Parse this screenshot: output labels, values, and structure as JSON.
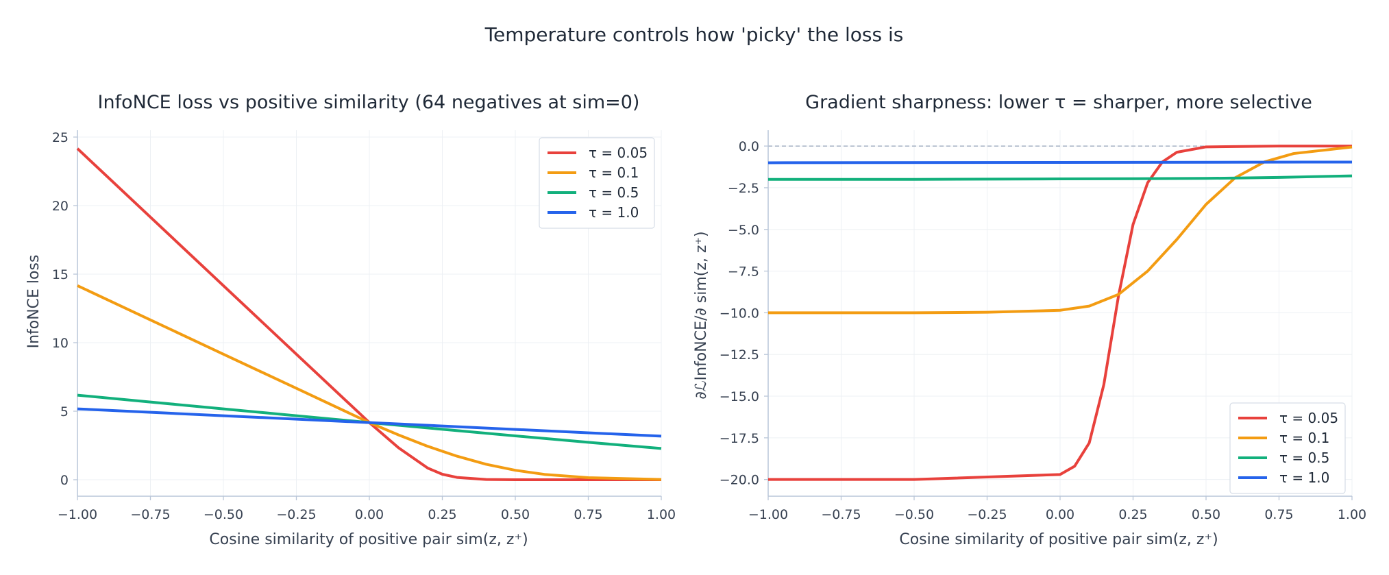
{
  "figure": {
    "suptitle": "Temperature controls how 'picky' the loss is"
  },
  "chart_data": [
    {
      "type": "line",
      "title": "InfoNCE loss vs positive similarity (64 negatives at sim=0)",
      "xlabel": "Cosine similarity of positive pair sim(z, z⁺)",
      "ylabel": "InfoNCE loss",
      "xlim": [
        -1.0,
        1.0
      ],
      "ylim": [
        -1.2,
        25.5
      ],
      "xticks": [
        -1.0,
        -0.75,
        -0.5,
        -0.25,
        0.0,
        0.25,
        0.5,
        0.75,
        1.0
      ],
      "xtick_labels": [
        "−1.00",
        "−0.75",
        "−0.50",
        "−0.25",
        "0.00",
        "0.25",
        "0.50",
        "0.75",
        "1.00"
      ],
      "yticks": [
        0,
        5,
        10,
        15,
        20,
        25
      ],
      "ytick_labels": [
        "0",
        "5",
        "10",
        "15",
        "20",
        "25"
      ],
      "grid": true,
      "legend": "top-right",
      "series": [
        {
          "name": "τ = 0.05",
          "color": "#e8413c",
          "tau": 0.05,
          "x": [
            -1.0,
            -0.75,
            -0.5,
            -0.25,
            0.0,
            0.1,
            0.2,
            0.25,
            0.3,
            0.4,
            0.5,
            0.75,
            1.0
          ],
          "y": [
            24.16,
            19.16,
            14.16,
            9.16,
            4.17,
            2.33,
            0.85,
            0.4,
            0.17,
            0.02,
            0.003,
            0.0,
            0.0
          ]
        },
        {
          "name": "τ = 0.1",
          "color": "#f39c12",
          "tau": 0.1,
          "x": [
            -1.0,
            -0.75,
            -0.5,
            -0.25,
            0.0,
            0.1,
            0.2,
            0.3,
            0.4,
            0.5,
            0.6,
            0.75,
            1.0
          ],
          "y": [
            14.16,
            11.66,
            9.16,
            6.67,
            4.17,
            3.27,
            2.44,
            1.72,
            1.13,
            0.69,
            0.39,
            0.15,
            0.02
          ]
        },
        {
          "name": "τ = 0.5",
          "color": "#12b07c",
          "tau": 0.5,
          "x": [
            -1.0,
            -0.75,
            -0.5,
            -0.25,
            0.0,
            0.25,
            0.5,
            0.75,
            1.0
          ],
          "y": [
            6.17,
            5.67,
            5.17,
            4.67,
            4.17,
            3.68,
            3.2,
            2.73,
            2.28
          ]
        },
        {
          "name": "τ = 1.0",
          "color": "#2563eb",
          "tau": 1.0,
          "x": [
            -1.0,
            -0.5,
            0.0,
            0.5,
            1.0
          ],
          "y": [
            5.17,
            4.67,
            4.17,
            3.67,
            3.18
          ]
        }
      ]
    },
    {
      "type": "line",
      "title": "Gradient sharpness: lower τ = sharper, more selective",
      "xlabel": "Cosine similarity of positive pair sim(z, z⁺)",
      "ylabel": "∂ℒInfoNCE/∂ sim(z, z⁺)",
      "xlim": [
        -1.0,
        1.0
      ],
      "ylim": [
        -21.0,
        0.95
      ],
      "xticks": [
        -1.0,
        -0.75,
        -0.5,
        -0.25,
        0.0,
        0.25,
        0.5,
        0.75,
        1.0
      ],
      "xtick_labels": [
        "−1.00",
        "−0.75",
        "−0.50",
        "−0.25",
        "0.00",
        "0.25",
        "0.50",
        "0.75",
        "1.00"
      ],
      "yticks": [
        0.0,
        -2.5,
        -5.0,
        -7.5,
        -10.0,
        -12.5,
        -15.0,
        -17.5,
        -20.0
      ],
      "ytick_labels": [
        "0.0",
        "−2.5",
        "−5.0",
        "−7.5",
        "−10.0",
        "−12.5",
        "−15.0",
        "−17.5",
        "−20.0"
      ],
      "reference_line": 0.0,
      "grid": true,
      "legend": "bottom-right",
      "series": [
        {
          "name": "τ = 0.05",
          "color": "#e8413c",
          "tau": 0.05,
          "x": [
            -1.0,
            -0.5,
            0.0,
            0.05,
            0.1,
            0.15,
            0.2,
            0.25,
            0.3,
            0.35,
            0.4,
            0.5,
            0.75,
            1.0
          ],
          "y": [
            -20.0,
            -20.0,
            -19.7,
            -19.2,
            -17.8,
            -14.3,
            -9.0,
            -4.7,
            -2.2,
            -0.96,
            -0.37,
            -0.05,
            0.0,
            0.0
          ]
        },
        {
          "name": "τ = 0.1",
          "color": "#f39c12",
          "tau": 0.1,
          "x": [
            -1.0,
            -0.5,
            -0.25,
            0.0,
            0.1,
            0.2,
            0.3,
            0.4,
            0.5,
            0.6,
            0.7,
            0.8,
            1.0
          ],
          "y": [
            -10.0,
            -10.0,
            -9.97,
            -9.85,
            -9.6,
            -8.9,
            -7.5,
            -5.6,
            -3.5,
            -1.9,
            -0.95,
            -0.45,
            -0.06
          ]
        },
        {
          "name": "τ = 0.5",
          "color": "#12b07c",
          "tau": 0.5,
          "x": [
            -1.0,
            -0.5,
            0.0,
            0.25,
            0.5,
            0.75,
            1.0
          ],
          "y": [
            -2.0,
            -2.0,
            -1.97,
            -1.96,
            -1.94,
            -1.88,
            -1.79
          ]
        },
        {
          "name": "τ = 1.0",
          "color": "#2563eb",
          "tau": 1.0,
          "x": [
            -1.0,
            0.0,
            1.0
          ],
          "y": [
            -1.0,
            -0.98,
            -0.96
          ]
        }
      ]
    }
  ]
}
